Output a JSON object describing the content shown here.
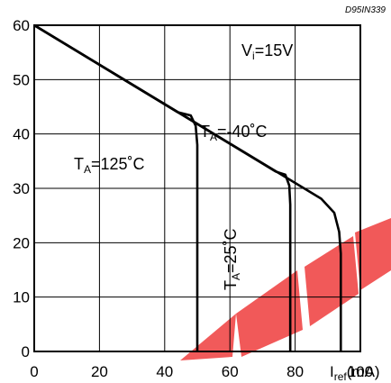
{
  "figure_code": "D95IN339",
  "watermark_color": "#f04848",
  "chart_data": {
    "type": "line",
    "title": "",
    "xlabel": {
      "main": "I",
      "sub": "ref",
      "unit": "(mA)"
    },
    "ylabel": "",
    "xlim": [
      0,
      100
    ],
    "ylim": [
      0,
      60
    ],
    "x_ticks": [
      0,
      20,
      40,
      60,
      80,
      100
    ],
    "x_tick_labels": [
      "0",
      "20",
      "40",
      "60",
      "80",
      "100"
    ],
    "y_ticks": [
      0,
      10,
      20,
      30,
      40,
      50,
      60
    ],
    "y_tick_labels": [
      "0",
      "10",
      "20",
      "30",
      "40",
      "50",
      "60"
    ],
    "grid": true,
    "annotations": [
      {
        "id": "vi",
        "main": "V",
        "sub": "i",
        "rest": "=15V"
      },
      {
        "id": "t125",
        "main": "T",
        "sub": "A",
        "rest": "=125˚C"
      },
      {
        "id": "tm40",
        "main": "T",
        "sub": "A",
        "rest": "=-40˚C"
      },
      {
        "id": "t25",
        "main": "T",
        "sub": "A",
        "rest": "=25˚C",
        "rotated": true
      }
    ],
    "series": [
      {
        "points": [
          [
            0,
            60
          ],
          [
            44,
            44
          ],
          [
            48,
            43.4
          ],
          [
            49.5,
            41.5
          ],
          [
            50,
            38
          ],
          [
            50,
            0
          ]
        ]
      },
      {
        "points": [
          [
            0,
            60
          ],
          [
            74,
            33.1
          ],
          [
            77,
            32.5
          ],
          [
            78.2,
            30.5
          ],
          [
            78.5,
            27
          ],
          [
            78.5,
            0
          ]
        ]
      },
      {
        "points": [
          [
            0,
            60
          ],
          [
            88,
            28.1
          ],
          [
            92,
            25.5
          ],
          [
            93.5,
            22
          ],
          [
            94,
            18
          ],
          [
            94,
            0
          ]
        ]
      }
    ]
  }
}
